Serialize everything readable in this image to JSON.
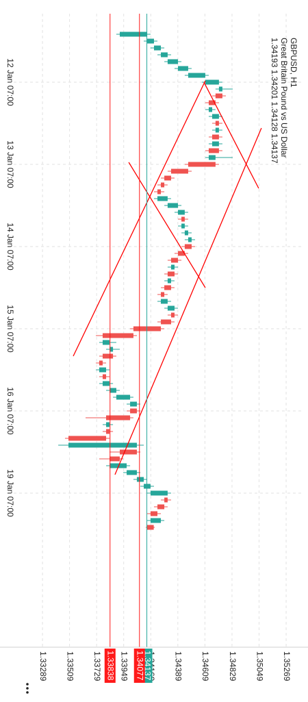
{
  "chart_data": {
    "type": "candlestick",
    "title": "GBPUSD, H1",
    "subtitle": "Great Britain Pound vs US Dollar",
    "ohlc_text": "1.34193 1.34201 1.34128 1.34137",
    "x": [
      0,
      2,
      4,
      6,
      8,
      10,
      12,
      14,
      16,
      18,
      20,
      22,
      24,
      26,
      28,
      30,
      32,
      34,
      36,
      38,
      40,
      42,
      44,
      46,
      48,
      50,
      52,
      54,
      56,
      58,
      60,
      62,
      64,
      66,
      68,
      70,
      72,
      74,
      76,
      78,
      80,
      82,
      84,
      86,
      88,
      90,
      92,
      94,
      96,
      98,
      100,
      102,
      104,
      106,
      108,
      110,
      112,
      114,
      116,
      118,
      120,
      122,
      124,
      126,
      128,
      130,
      132,
      134,
      136,
      138,
      140,
      142,
      144
    ],
    "candles": [
      [
        1.33917,
        1.34167,
        1.33889,
        1.3414
      ],
      [
        1.3414,
        1.34223,
        1.34112,
        1.34195
      ],
      [
        1.34195,
        1.34279,
        1.34167,
        1.34251
      ],
      [
        1.34251,
        1.34334,
        1.34223,
        1.34306
      ],
      [
        1.34306,
        1.34418,
        1.34279,
        1.3439
      ],
      [
        1.3439,
        1.34501,
        1.34362,
        1.34473
      ],
      [
        1.34473,
        1.3464,
        1.34445,
        1.34612
      ],
      [
        1.34612,
        1.34751,
        1.34584,
        1.34723
      ],
      [
        1.34723,
        1.34835,
        1.34695,
        1.34751
      ],
      [
        1.34751,
        1.34779,
        1.34668,
        1.34695
      ],
      [
        1.34695,
        1.34723,
        1.34612,
        1.3464
      ],
      [
        1.3464,
        1.34695,
        1.34612,
        1.34668
      ],
      [
        1.34668,
        1.34751,
        1.3464,
        1.34723
      ],
      [
        1.34723,
        1.34751,
        1.34668,
        1.34695
      ],
      [
        1.34695,
        1.34751,
        1.34668,
        1.34723
      ],
      [
        1.34723,
        1.34751,
        1.3464,
        1.34668
      ],
      [
        1.34668,
        1.34751,
        1.3464,
        1.34723
      ],
      [
        1.34723,
        1.34751,
        1.34612,
        1.3464
      ],
      [
        1.3464,
        1.34835,
        1.34612,
        1.34695
      ],
      [
        1.34695,
        1.34723,
        1.34445,
        1.34473
      ],
      [
        1.34473,
        1.34501,
        1.34306,
        1.34334
      ],
      [
        1.34334,
        1.34362,
        1.34251,
        1.34279
      ],
      [
        1.34279,
        1.34306,
        1.34223,
        1.34251
      ],
      [
        1.34251,
        1.34279,
        1.34195,
        1.34223
      ],
      [
        1.34223,
        1.34334,
        1.34195,
        1.34306
      ],
      [
        1.34306,
        1.34418,
        1.34279,
        1.3439
      ],
      [
        1.3439,
        1.34473,
        1.34362,
        1.34445
      ],
      [
        1.34445,
        1.34473,
        1.3439,
        1.34418
      ],
      [
        1.34418,
        1.34473,
        1.3439,
        1.34445
      ],
      [
        1.34445,
        1.34501,
        1.34418,
        1.34473
      ],
      [
        1.34473,
        1.34529,
        1.34445,
        1.34501
      ],
      [
        1.34501,
        1.34529,
        1.34418,
        1.34445
      ],
      [
        1.34445,
        1.34473,
        1.34362,
        1.3439
      ],
      [
        1.3439,
        1.34418,
        1.34306,
        1.34334
      ],
      [
        1.34334,
        1.3439,
        1.34306,
        1.34362
      ],
      [
        1.34362,
        1.3439,
        1.34279,
        1.34306
      ],
      [
        1.34306,
        1.34362,
        1.34279,
        1.34334
      ],
      [
        1.34334,
        1.34362,
        1.34251,
        1.34279
      ],
      [
        1.34279,
        1.34306,
        1.34223,
        1.34251
      ],
      [
        1.34251,
        1.34334,
        1.34223,
        1.34306
      ],
      [
        1.34306,
        1.3439,
        1.34279,
        1.34362
      ],
      [
        1.34362,
        1.3439,
        1.34306,
        1.34334
      ],
      [
        1.34334,
        1.34362,
        1.34223,
        1.34251
      ],
      [
        1.34251,
        1.34279,
        1.34001,
        1.34028
      ],
      [
        1.34028,
        1.34056,
        1.33723,
        1.33778
      ],
      [
        1.33778,
        1.33889,
        1.3375,
        1.33834
      ],
      [
        1.33834,
        1.33917,
        1.33806,
        1.33862
      ],
      [
        1.33862,
        1.33889,
        1.3375,
        1.33778
      ],
      [
        1.33778,
        1.33806,
        1.33723,
        1.3375
      ],
      [
        1.3375,
        1.33834,
        1.33723,
        1.33806
      ],
      [
        1.33806,
        1.33834,
        1.3375,
        1.33778
      ],
      [
        1.33778,
        1.33862,
        1.3375,
        1.33834
      ],
      [
        1.33834,
        1.33917,
        1.33806,
        1.33889
      ],
      [
        1.33889,
        1.34028,
        1.33862,
        1.34001
      ],
      [
        1.34001,
        1.34084,
        1.33973,
        1.34056
      ],
      [
        1.34056,
        1.34084,
        1.33973,
        1.34001
      ],
      [
        1.34001,
        1.34028,
        1.33639,
        1.33806
      ],
      [
        1.33806,
        1.33862,
        1.33778,
        1.33834
      ],
      [
        1.33834,
        1.33862,
        1.33778,
        1.33806
      ],
      [
        1.33806,
        1.33834,
        1.33472,
        1.335
      ],
      [
        1.335,
        1.34112,
        1.33417,
        1.34056
      ],
      [
        1.34056,
        1.34084,
        1.33834,
        1.33917
      ],
      [
        1.33917,
        1.33945,
        1.3375,
        1.33834
      ],
      [
        1.33834,
        1.34001,
        1.33806,
        1.33973
      ],
      [
        1.33973,
        1.34084,
        1.33945,
        1.34056
      ],
      [
        1.34056,
        1.3414,
        1.34028,
        1.34112
      ],
      [
        1.34112,
        1.34195,
        1.34084,
        1.34167
      ],
      [
        1.34167,
        1.34334,
        1.3414,
        1.34306
      ],
      [
        1.34306,
        1.34334,
        1.34251,
        1.34279
      ],
      [
        1.34279,
        1.34306,
        1.34195,
        1.34223
      ],
      [
        1.34223,
        1.34251,
        1.3414,
        1.34167
      ],
      [
        1.34167,
        1.34279,
        1.3414,
        1.34251
      ],
      [
        1.34193,
        1.34201,
        1.34128,
        1.34137
      ]
    ],
    "up_color": "#26a69a",
    "down_color": "#ef5350",
    "xlim": [
      -6,
      179
    ],
    "xticks": [
      {
        "value": 14,
        "label": "12 Jan 07:00"
      },
      {
        "value": 38,
        "label": "13 Jan 07:00"
      },
      {
        "value": 62,
        "label": "14 Jan 07:00"
      },
      {
        "value": 86,
        "label": "15 Jan 07:00"
      },
      {
        "value": 110,
        "label": "16 Jan 07:00"
      },
      {
        "value": 134,
        "label": "19 Jan 07:00"
      }
    ],
    "ylim": [
      1.33055,
      1.35391
    ],
    "yticks": [
      1.33289,
      1.33509,
      1.33729,
      1.33949,
      1.34169,
      1.34389,
      1.34609,
      1.34829,
      1.35049,
      1.35269
    ],
    "grid": true,
    "price_lines": [
      {
        "value": 1.34137,
        "color": "#26a69a"
      },
      {
        "value": 1.33838,
        "color": "#ff1a1a"
      },
      {
        "value": 1.34077,
        "color": "#ff1a1a"
      }
    ],
    "trend_lines": [
      {
        "color": "#ff0000",
        "points": [
          [
            13.6,
            1.34612
          ],
          [
            94,
            1.33539
          ]
        ]
      },
      {
        "color": "#ff0000",
        "points": [
          [
            27.4,
            1.35068
          ],
          [
            128.6,
            1.33878
          ]
        ]
      },
      {
        "color": "#ff0000",
        "points": [
          [
            37.4,
            1.3399
          ],
          [
            74,
            1.34612
          ]
        ]
      },
      {
        "color": "#ff0000",
        "points": [
          [
            14,
            1.34601
          ],
          [
            45,
            1.35046
          ]
        ]
      }
    ]
  }
}
